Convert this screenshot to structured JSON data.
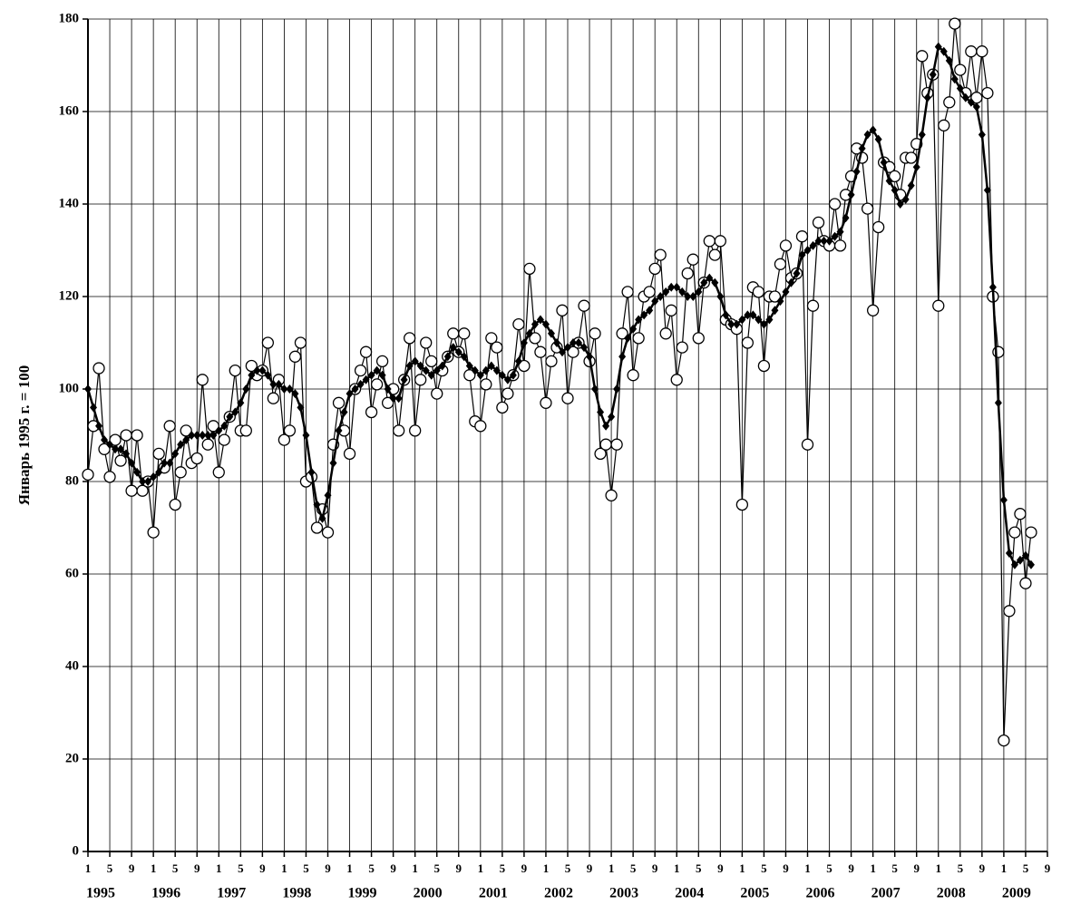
{
  "chart_data": {
    "type": "line",
    "y_label": "Январь 1995 г. = 100",
    "ylim": [
      0,
      180
    ],
    "yticks": [
      0,
      20,
      40,
      60,
      80,
      100,
      120,
      140,
      160,
      180
    ],
    "xlim": [
      "1995-01",
      "2009-09"
    ],
    "grid": true,
    "xticks": [
      {
        "value": "1995-01",
        "label": "1"
      },
      {
        "value": "1995-05",
        "label": "5"
      },
      {
        "value": "1995-09",
        "label": "9"
      },
      {
        "value": "1996-01",
        "label": "1"
      },
      {
        "value": "1996-05",
        "label": "5"
      },
      {
        "value": "1996-09",
        "label": "9"
      },
      {
        "value": "1997-01",
        "label": "1"
      },
      {
        "value": "1997-05",
        "label": "5"
      },
      {
        "value": "1997-09",
        "label": "9"
      },
      {
        "value": "1998-01",
        "label": "1"
      },
      {
        "value": "1998-05",
        "label": "5"
      },
      {
        "value": "1998-09",
        "label": "9"
      },
      {
        "value": "1999-01",
        "label": "1"
      },
      {
        "value": "1999-05",
        "label": "5"
      },
      {
        "value": "1999-09",
        "label": "9"
      },
      {
        "value": "2000-01",
        "label": "1"
      },
      {
        "value": "2000-05",
        "label": "5"
      },
      {
        "value": "2000-09",
        "label": "9"
      },
      {
        "value": "2001-01",
        "label": "1"
      },
      {
        "value": "2001-05",
        "label": "5"
      },
      {
        "value": "2001-09",
        "label": "9"
      },
      {
        "value": "2002-01",
        "label": "1"
      },
      {
        "value": "2002-05",
        "label": "5"
      },
      {
        "value": "2002-09",
        "label": "9"
      },
      {
        "value": "2003-01",
        "label": "1"
      },
      {
        "value": "2003-05",
        "label": "5"
      },
      {
        "value": "2003-09",
        "label": "9"
      },
      {
        "value": "2004-01",
        "label": "1"
      },
      {
        "value": "2004-05",
        "label": "5"
      },
      {
        "value": "2004-09",
        "label": "9"
      },
      {
        "value": "2005-01",
        "label": "1"
      },
      {
        "value": "2005-05",
        "label": "5"
      },
      {
        "value": "2005-09",
        "label": "9"
      },
      {
        "value": "2006-01",
        "label": "1"
      },
      {
        "value": "2006-05",
        "label": "5"
      },
      {
        "value": "2006-09",
        "label": "9"
      },
      {
        "value": "2007-01",
        "label": "1"
      },
      {
        "value": "2007-05",
        "label": "5"
      },
      {
        "value": "2007-09",
        "label": "9"
      },
      {
        "value": "2008-01",
        "label": "1"
      },
      {
        "value": "2008-05",
        "label": "5"
      },
      {
        "value": "2008-09",
        "label": "9"
      },
      {
        "value": "2009-01",
        "label": "1"
      },
      {
        "value": "2009-05",
        "label": "5"
      },
      {
        "value": "2009-09",
        "label": "9"
      }
    ],
    "year_labels": [
      {
        "value": "1995-01",
        "label": "1995"
      },
      {
        "value": "1996-01",
        "label": "1996"
      },
      {
        "value": "1997-01",
        "label": "1997"
      },
      {
        "value": "1998-01",
        "label": "1998"
      },
      {
        "value": "1999-01",
        "label": "1999"
      },
      {
        "value": "2000-01",
        "label": "2000"
      },
      {
        "value": "2001-01",
        "label": "2001"
      },
      {
        "value": "2002-01",
        "label": "2002"
      },
      {
        "value": "2003-01",
        "label": "2003"
      },
      {
        "value": "2004-01",
        "label": "2004"
      },
      {
        "value": "2005-01",
        "label": "2005"
      },
      {
        "value": "2006-01",
        "label": "2006"
      },
      {
        "value": "2007-01",
        "label": "2007"
      },
      {
        "value": "2008-01",
        "label": "2008"
      },
      {
        "value": "2009-01",
        "label": "2009"
      }
    ],
    "x": [
      "1995-01",
      "1995-02",
      "1995-03",
      "1995-04",
      "1995-05",
      "1995-06",
      "1995-07",
      "1995-08",
      "1995-09",
      "1995-10",
      "1995-11",
      "1995-12",
      "1996-01",
      "1996-02",
      "1996-03",
      "1996-04",
      "1996-05",
      "1996-06",
      "1996-07",
      "1996-08",
      "1996-09",
      "1996-10",
      "1996-11",
      "1996-12",
      "1997-01",
      "1997-02",
      "1997-03",
      "1997-04",
      "1997-05",
      "1997-06",
      "1997-07",
      "1997-08",
      "1997-09",
      "1997-10",
      "1997-11",
      "1997-12",
      "1998-01",
      "1998-02",
      "1998-03",
      "1998-04",
      "1998-05",
      "1998-06",
      "1998-07",
      "1998-08",
      "1998-09",
      "1998-10",
      "1998-11",
      "1998-12",
      "1999-01",
      "1999-02",
      "1999-03",
      "1999-04",
      "1999-05",
      "1999-06",
      "1999-07",
      "1999-08",
      "1999-09",
      "1999-10",
      "1999-11",
      "1999-12",
      "2000-01",
      "2000-02",
      "2000-03",
      "2000-04",
      "2000-05",
      "2000-06",
      "2000-07",
      "2000-08",
      "2000-09",
      "2000-10",
      "2000-11",
      "2000-12",
      "2001-01",
      "2001-02",
      "2001-03",
      "2001-04",
      "2001-05",
      "2001-06",
      "2001-07",
      "2001-08",
      "2001-09",
      "2001-10",
      "2001-11",
      "2001-12",
      "2002-01",
      "2002-02",
      "2002-03",
      "2002-04",
      "2002-05",
      "2002-06",
      "2002-07",
      "2002-08",
      "2002-09",
      "2002-10",
      "2002-11",
      "2002-12",
      "2003-01",
      "2003-02",
      "2003-03",
      "2003-04",
      "2003-05",
      "2003-06",
      "2003-07",
      "2003-08",
      "2003-09",
      "2003-10",
      "2003-11",
      "2003-12",
      "2004-01",
      "2004-02",
      "2004-03",
      "2004-04",
      "2004-05",
      "2004-06",
      "2004-07",
      "2004-08",
      "2004-09",
      "2004-10",
      "2004-11",
      "2004-12",
      "2005-01",
      "2005-02",
      "2005-03",
      "2005-04",
      "2005-05",
      "2005-06",
      "2005-07",
      "2005-08",
      "2005-09",
      "2005-10",
      "2005-11",
      "2005-12",
      "2006-01",
      "2006-02",
      "2006-03",
      "2006-04",
      "2006-05",
      "2006-06",
      "2006-07",
      "2006-08",
      "2006-09",
      "2006-10",
      "2006-11",
      "2006-12",
      "2007-01",
      "2007-02",
      "2007-03",
      "2007-04",
      "2007-05",
      "2007-06",
      "2007-07",
      "2007-08",
      "2007-09",
      "2007-10",
      "2007-11",
      "2007-12",
      "2008-01",
      "2008-02",
      "2008-03",
      "2008-04",
      "2008-05",
      "2008-06",
      "2008-07",
      "2008-08",
      "2008-09",
      "2008-10",
      "2008-11",
      "2008-12",
      "2009-01",
      "2009-02",
      "2009-03",
      "2009-04",
      "2009-05",
      "2009-06"
    ],
    "series": [
      {
        "marker": "circle",
        "color": "#000000",
        "values": [
          81.5,
          92,
          104.5,
          87,
          81,
          89,
          84.5,
          90,
          78,
          90,
          78,
          80,
          69,
          86,
          83,
          92,
          75,
          82,
          91,
          84,
          85,
          102,
          88,
          92,
          82,
          89,
          94,
          104,
          91,
          91,
          105,
          103,
          104,
          110,
          98,
          102,
          89,
          91,
          107,
          110,
          80,
          81,
          70,
          74,
          69,
          88,
          97,
          91,
          86,
          100,
          104,
          108,
          95,
          101,
          106,
          97,
          100,
          91,
          102,
          111,
          91,
          102,
          110,
          106,
          99,
          104,
          107,
          112,
          108,
          112,
          103,
          93,
          92,
          101,
          111,
          109,
          96,
          99,
          103,
          114,
          105,
          126,
          111,
          108,
          97,
          106,
          109,
          117,
          98,
          108,
          110,
          118,
          106,
          112,
          86,
          88,
          77,
          88,
          112,
          121,
          103,
          111,
          120,
          121,
          126,
          129,
          112,
          117,
          102,
          109,
          125,
          128,
          111,
          123,
          132,
          129,
          132,
          115,
          114,
          113,
          75,
          110,
          122,
          121,
          105,
          120,
          120,
          127,
          131,
          124,
          125,
          133,
          88,
          118,
          136,
          132,
          131,
          140,
          131,
          142,
          146,
          152,
          150,
          139,
          117,
          135,
          149,
          148,
          146,
          142,
          150,
          150,
          153,
          172,
          164,
          168,
          118,
          157,
          162,
          179,
          169,
          164,
          173,
          163,
          173,
          164,
          120,
          108,
          24,
          52,
          69,
          73,
          58,
          69
        ]
      },
      {
        "marker": "diamond",
        "color": "#000000",
        "values": [
          100,
          96,
          92,
          89,
          88,
          87,
          87,
          86,
          84,
          82,
          80,
          80,
          81,
          82,
          84,
          84,
          86,
          88,
          89,
          90,
          90,
          90,
          90,
          90,
          91,
          92,
          94,
          95,
          97,
          100,
          103,
          104,
          104,
          103,
          101,
          101,
          100,
          100,
          99,
          96,
          90,
          82,
          75,
          72,
          77,
          84,
          91,
          95,
          99,
          100,
          101,
          102,
          103,
          104,
          103,
          100,
          98,
          98,
          102,
          105,
          106,
          105,
          104,
          103,
          104,
          105,
          107,
          109,
          108,
          107,
          105,
          104,
          103,
          104,
          105,
          104,
          103,
          102,
          103,
          106,
          110,
          112,
          114,
          115,
          114,
          112,
          110,
          108,
          109,
          110,
          110,
          109,
          107,
          100,
          95,
          92,
          94,
          100,
          107,
          111,
          113,
          115,
          116,
          117,
          119,
          120,
          121,
          122,
          122,
          121,
          120,
          120,
          121,
          123,
          124,
          123,
          120,
          116,
          114,
          114,
          115,
          116,
          116,
          115,
          114,
          115,
          117,
          119,
          121,
          123,
          125,
          129,
          130,
          131,
          132,
          132,
          132,
          133,
          134,
          137,
          142,
          147,
          152,
          155,
          156,
          154,
          149,
          145,
          143,
          140,
          141,
          144,
          148,
          155,
          163,
          168,
          174,
          173,
          171,
          167,
          165,
          163,
          162,
          161,
          155,
          143,
          122,
          97,
          76,
          64.5,
          62,
          63,
          64,
          62
        ]
      }
    ]
  }
}
